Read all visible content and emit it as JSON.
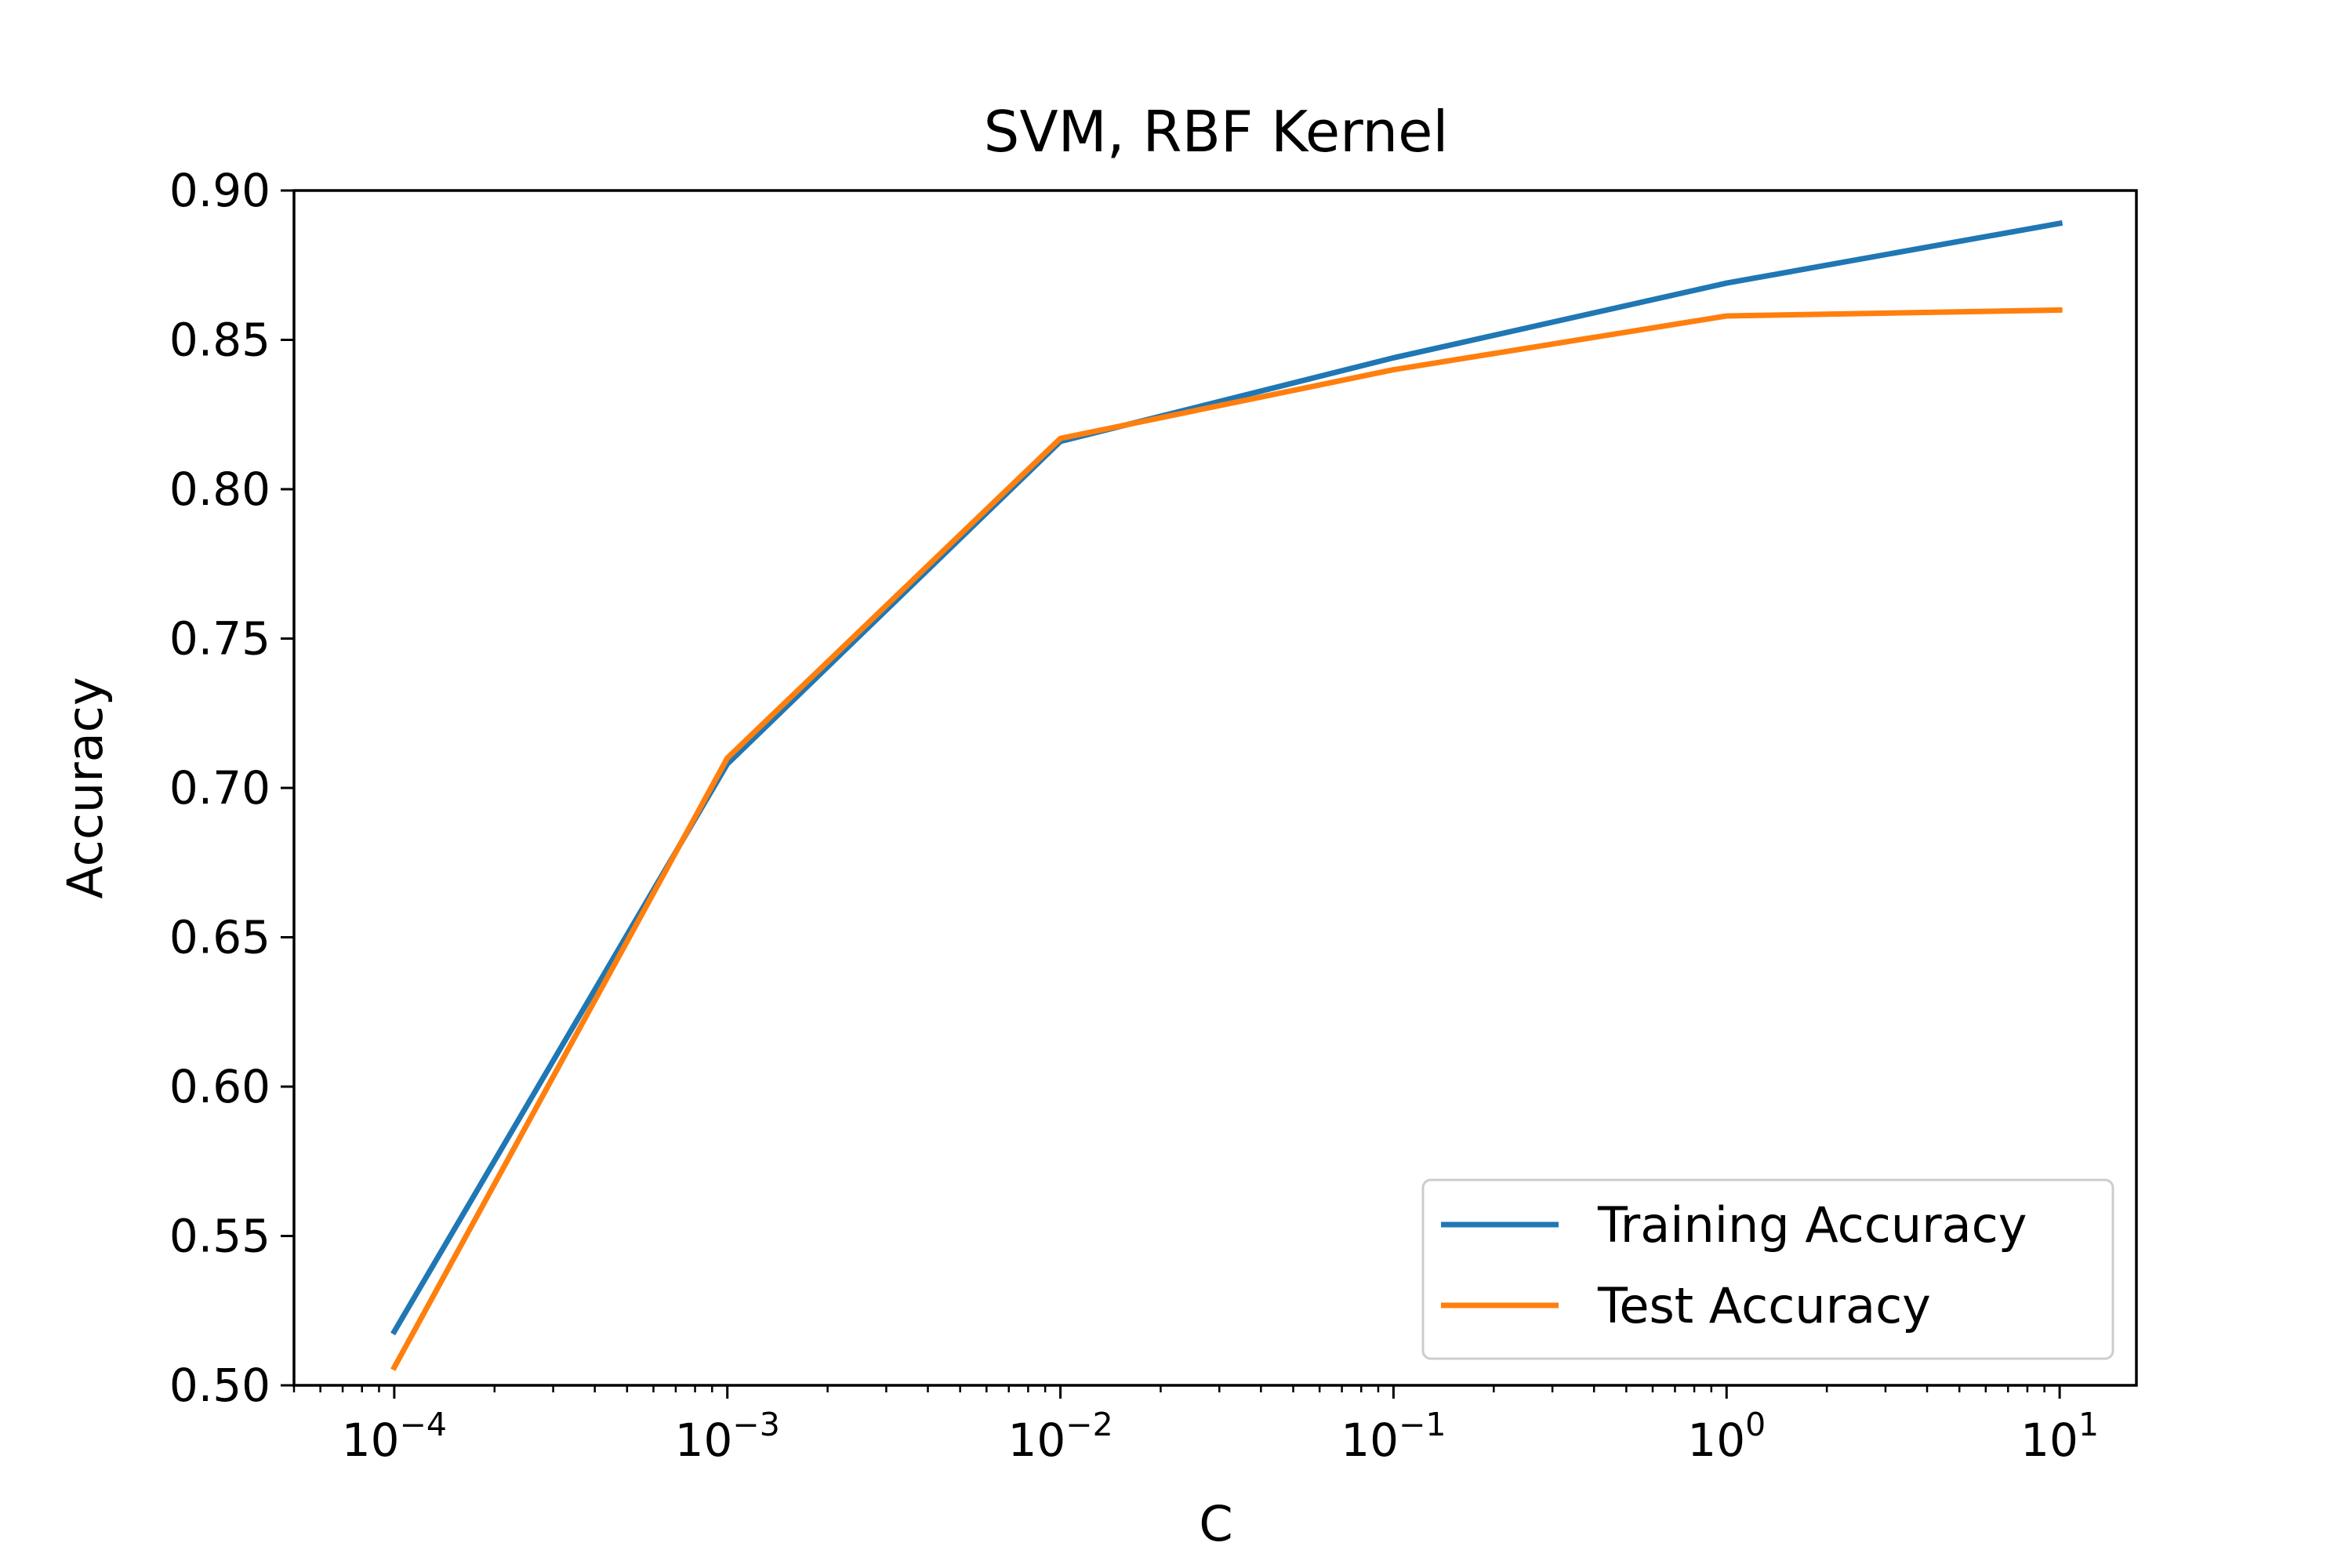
{
  "chart_data": {
    "type": "line",
    "title": "SVM, RBF Kernel",
    "xlabel": "C",
    "ylabel": "Accuracy",
    "x_scale": "log",
    "x": [
      0.0001,
      0.001,
      0.01,
      0.1,
      1,
      10
    ],
    "xlim": [
      5e-05,
      17
    ],
    "ylim": [
      0.5,
      0.9
    ],
    "grid": false,
    "legend_position": "lower right",
    "x_ticks": [
      {
        "value": 0.0001,
        "base": "10",
        "exp": "−4"
      },
      {
        "value": 0.001,
        "base": "10",
        "exp": "−3"
      },
      {
        "value": 0.01,
        "base": "10",
        "exp": "−2"
      },
      {
        "value": 0.1,
        "base": "10",
        "exp": "−1"
      },
      {
        "value": 1,
        "base": "10",
        "exp": "0"
      },
      {
        "value": 10,
        "base": "10",
        "exp": "1"
      }
    ],
    "y_ticks": [
      {
        "value": 0.5,
        "label": "0.50"
      },
      {
        "value": 0.55,
        "label": "0.55"
      },
      {
        "value": 0.6,
        "label": "0.60"
      },
      {
        "value": 0.65,
        "label": "0.65"
      },
      {
        "value": 0.7,
        "label": "0.70"
      },
      {
        "value": 0.75,
        "label": "0.75"
      },
      {
        "value": 0.8,
        "label": "0.80"
      },
      {
        "value": 0.85,
        "label": "0.85"
      },
      {
        "value": 0.9,
        "label": "0.90"
      }
    ],
    "series": [
      {
        "name": "Training Accuracy",
        "color": "#1f77b4",
        "values": [
          0.518,
          0.708,
          0.816,
          0.844,
          0.869,
          0.889
        ]
      },
      {
        "name": "Test Accuracy",
        "color": "#ff7f0e",
        "values": [
          0.506,
          0.71,
          0.817,
          0.84,
          0.858,
          0.86
        ]
      }
    ]
  }
}
